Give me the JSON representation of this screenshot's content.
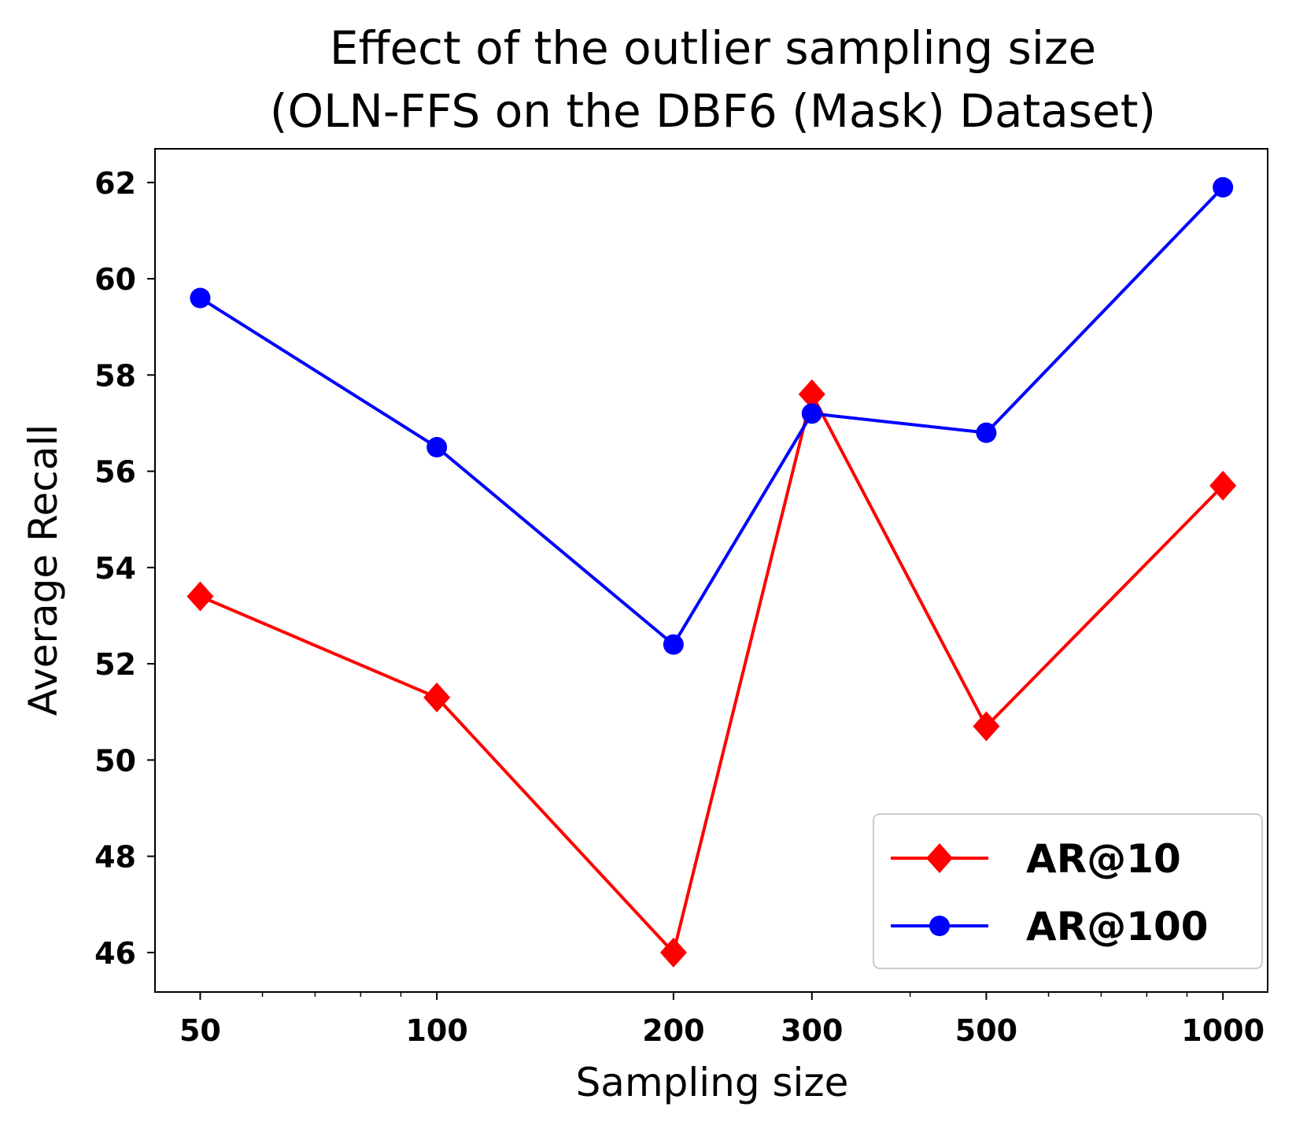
{
  "chart_data": {
    "type": "line",
    "title": "Effect of the outlier sampling size",
    "subtitle": "(OLN-FFS on the DBF6 (Mask) Dataset)",
    "xlabel": "Sampling size",
    "ylabel": "Average Recall",
    "x_scale": "log",
    "x": [
      50,
      100,
      200,
      300,
      500,
      1000
    ],
    "x_tick_labels": [
      "50",
      "100",
      "200",
      "300",
      "500",
      "1000"
    ],
    "y_ticks": [
      46,
      48,
      50,
      52,
      54,
      56,
      58,
      60,
      62
    ],
    "y_tick_labels": [
      "46",
      "48",
      "50",
      "52",
      "54",
      "56",
      "58",
      "60",
      "62"
    ],
    "xlim": [
      43.8,
      1140
    ],
    "ylim": [
      45.18,
      62.7
    ],
    "grid": false,
    "legend_position": "lower-right",
    "series": [
      {
        "name": "AR@10",
        "color": "#ff0000",
        "marker": "diamond",
        "values": [
          53.4,
          51.3,
          46.0,
          57.6,
          50.7,
          55.7
        ]
      },
      {
        "name": "AR@100",
        "color": "#0000ff",
        "marker": "circle",
        "values": [
          59.6,
          56.5,
          52.4,
          57.2,
          56.8,
          61.9
        ]
      }
    ]
  }
}
